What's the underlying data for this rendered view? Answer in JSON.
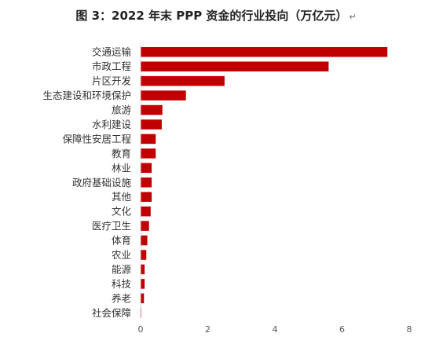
{
  "title": "图 3：2022 年末 PPP 资金的行业投向（万亿元）",
  "title_mark": "↵",
  "colors": {
    "bar": "#c00000",
    "axis": "#d9d9d9",
    "text": "#333333"
  },
  "chart_data": {
    "type": "bar",
    "orientation": "horizontal",
    "title": "图 3：2022 年末 PPP 资金的行业投向（万亿元）",
    "categories": [
      "交通运输",
      "市政工程",
      "片区开发",
      "生态建设和环境保护",
      "旅游",
      "水利建设",
      "保障性安居工程",
      "教育",
      "林业",
      "政府基础设施",
      "其他",
      "文化",
      "医疗卫生",
      "体育",
      "农业",
      "能源",
      "科技",
      "养老",
      "社会保障"
    ],
    "values": [
      7.35,
      5.6,
      2.5,
      1.35,
      0.65,
      0.63,
      0.45,
      0.45,
      0.33,
      0.33,
      0.33,
      0.3,
      0.25,
      0.2,
      0.17,
      0.12,
      0.12,
      0.1,
      0.02
    ],
    "xlim": [
      0,
      8
    ],
    "xticks": [
      0,
      2,
      4,
      6,
      8
    ],
    "grid": false,
    "legend": "none"
  }
}
